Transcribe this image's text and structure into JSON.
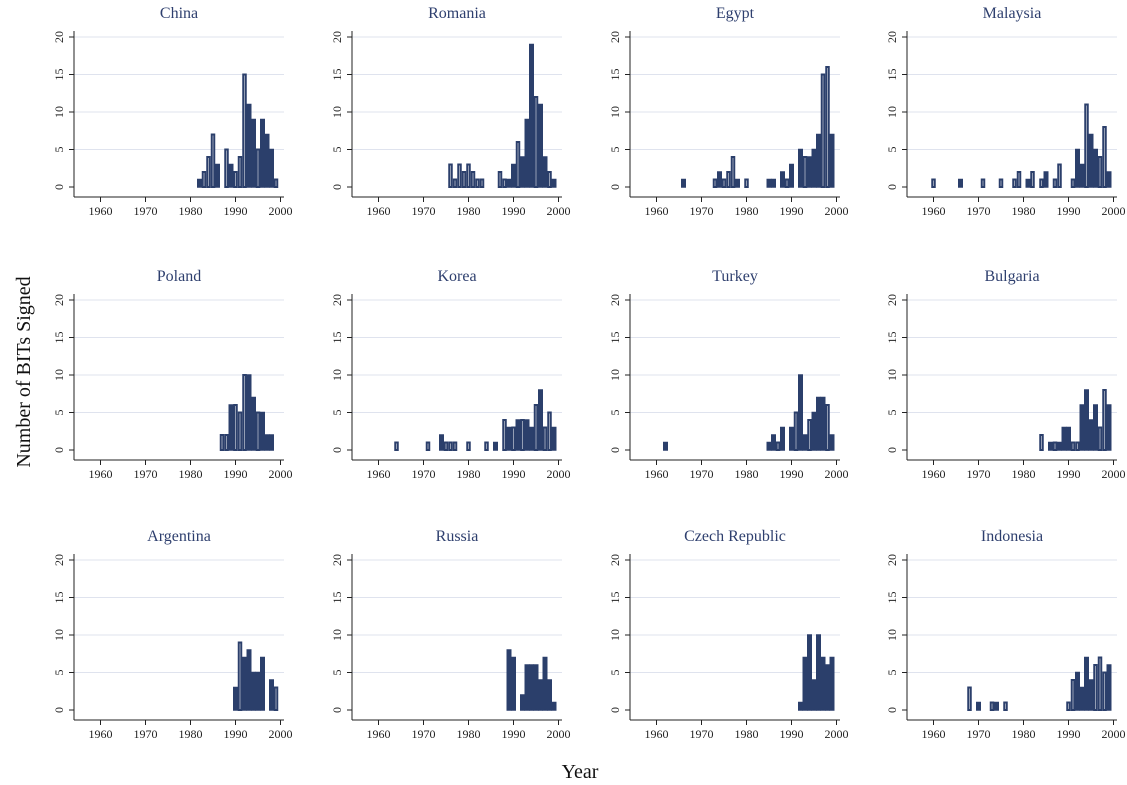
{
  "figure": {
    "ylabel": "Number of BITs Signed",
    "xlabel": "Year"
  },
  "chart_data": [
    {
      "type": "bar",
      "title": "China",
      "xlim": [
        1955,
        2002
      ],
      "ylim": [
        0,
        20
      ],
      "xticks": [
        1960,
        1970,
        1980,
        1990,
        2000
      ],
      "yticks": [
        0,
        5,
        10,
        15,
        20
      ],
      "grid": true,
      "x": [
        1982,
        1983,
        1984,
        1985,
        1986,
        1988,
        1989,
        1990,
        1991,
        1992,
        1993,
        1994,
        1995,
        1996,
        1997,
        1998,
        1999
      ],
      "values": [
        1,
        2,
        4,
        7,
        3,
        5,
        3,
        2,
        4,
        15,
        11,
        9,
        5,
        9,
        7,
        5,
        1
      ],
      "hollow": [
        false,
        true,
        true,
        true,
        false,
        true,
        false,
        true,
        true,
        true,
        false,
        false,
        true,
        false,
        false,
        false,
        true
      ]
    },
    {
      "type": "bar",
      "title": "Romania",
      "xlim": [
        1955,
        2002
      ],
      "ylim": [
        0,
        20
      ],
      "xticks": [
        1960,
        1970,
        1980,
        1990,
        2000
      ],
      "yticks": [
        0,
        5,
        10,
        15,
        20
      ],
      "grid": true,
      "x": [
        1976,
        1977,
        1978,
        1979,
        1980,
        1981,
        1982,
        1983,
        1987,
        1988,
        1989,
        1990,
        1991,
        1992,
        1993,
        1994,
        1995,
        1996,
        1997,
        1998,
        1999
      ],
      "values": [
        3,
        1,
        3,
        2,
        3,
        2,
        1,
        1,
        2,
        1,
        1,
        3,
        6,
        4,
        9,
        19,
        12,
        11,
        4,
        2,
        1
      ],
      "hollow": [
        true,
        true,
        true,
        true,
        true,
        true,
        true,
        true,
        true,
        true,
        false,
        false,
        true,
        false,
        false,
        false,
        true,
        false,
        false,
        true,
        false
      ]
    },
    {
      "type": "bar",
      "title": "Egypt",
      "xlim": [
        1955,
        2002
      ],
      "ylim": [
        0,
        20
      ],
      "xticks": [
        1960,
        1970,
        1980,
        1990,
        2000
      ],
      "yticks": [
        0,
        5,
        10,
        15,
        20
      ],
      "grid": true,
      "x": [
        1966,
        1973,
        1974,
        1975,
        1976,
        1977,
        1978,
        1980,
        1985,
        1986,
        1988,
        1989,
        1990,
        1992,
        1993,
        1994,
        1995,
        1996,
        1997,
        1998,
        1999
      ],
      "values": [
        1,
        1,
        2,
        1,
        2,
        4,
        1,
        1,
        1,
        1,
        2,
        1,
        3,
        5,
        4,
        4,
        5,
        7,
        15,
        16,
        7
      ],
      "hollow": [
        false,
        true,
        false,
        true,
        true,
        true,
        false,
        true,
        false,
        false,
        false,
        true,
        false,
        false,
        true,
        false,
        false,
        false,
        true,
        true,
        false
      ]
    },
    {
      "type": "bar",
      "title": "Malaysia",
      "xlim": [
        1955,
        2002
      ],
      "ylim": [
        0,
        20
      ],
      "xticks": [
        1960,
        1970,
        1980,
        1990,
        2000
      ],
      "yticks": [
        0,
        5,
        10,
        15,
        20
      ],
      "grid": true,
      "x": [
        1960,
        1966,
        1971,
        1975,
        1978,
        1979,
        1981,
        1982,
        1984,
        1985,
        1987,
        1988,
        1991,
        1992,
        1993,
        1994,
        1995,
        1996,
        1997,
        1998,
        1999
      ],
      "values": [
        1,
        1,
        1,
        1,
        1,
        2,
        1,
        2,
        1,
        2,
        1,
        3,
        1,
        5,
        3,
        11,
        7,
        5,
        4,
        8,
        2
      ],
      "hollow": [
        true,
        false,
        true,
        true,
        true,
        true,
        false,
        true,
        true,
        false,
        true,
        true,
        true,
        false,
        false,
        true,
        false,
        false,
        true,
        true,
        false
      ]
    },
    {
      "type": "bar",
      "title": "Poland",
      "xlim": [
        1955,
        2002
      ],
      "ylim": [
        0,
        20
      ],
      "xticks": [
        1960,
        1970,
        1980,
        1990,
        2000
      ],
      "yticks": [
        0,
        5,
        10,
        15,
        20
      ],
      "grid": true,
      "x": [
        1987,
        1988,
        1989,
        1990,
        1991,
        1992,
        1993,
        1994,
        1995,
        1996,
        1997,
        1998
      ],
      "values": [
        2,
        2,
        6,
        6,
        5,
        10,
        10,
        7,
        5,
        5,
        2,
        2
      ],
      "hollow": [
        true,
        true,
        false,
        true,
        true,
        true,
        false,
        false,
        true,
        false,
        false,
        false
      ]
    },
    {
      "type": "bar",
      "title": "Korea",
      "xlim": [
        1955,
        2002
      ],
      "ylim": [
        0,
        20
      ],
      "xticks": [
        1960,
        1970,
        1980,
        1990,
        2000
      ],
      "yticks": [
        0,
        5,
        10,
        15,
        20
      ],
      "grid": true,
      "x": [
        1964,
        1971,
        1974,
        1975,
        1976,
        1977,
        1980,
        1984,
        1986,
        1988,
        1989,
        1990,
        1991,
        1992,
        1993,
        1994,
        1995,
        1996,
        1997,
        1998,
        1999
      ],
      "values": [
        1,
        1,
        2,
        1,
        1,
        1,
        1,
        1,
        1,
        4,
        3,
        3,
        4,
        4,
        4,
        3,
        6,
        8,
        3,
        5,
        3
      ],
      "hollow": [
        true,
        true,
        false,
        true,
        true,
        true,
        true,
        true,
        false,
        true,
        false,
        true,
        false,
        true,
        false,
        false,
        true,
        false,
        true,
        true,
        false
      ]
    },
    {
      "type": "bar",
      "title": "Turkey",
      "xlim": [
        1955,
        2002
      ],
      "ylim": [
        0,
        20
      ],
      "xticks": [
        1960,
        1970,
        1980,
        1990,
        2000
      ],
      "yticks": [
        0,
        5,
        10,
        15,
        20
      ],
      "grid": true,
      "x": [
        1962,
        1985,
        1986,
        1987,
        1988,
        1990,
        1991,
        1992,
        1993,
        1994,
        1995,
        1996,
        1997,
        1998,
        1999
      ],
      "values": [
        1,
        1,
        2,
        1,
        3,
        3,
        5,
        10,
        2,
        4,
        5,
        7,
        7,
        6,
        2
      ],
      "hollow": [
        false,
        false,
        false,
        true,
        false,
        false,
        true,
        false,
        false,
        true,
        false,
        false,
        false,
        true,
        false
      ]
    },
    {
      "type": "bar",
      "title": "Bulgaria",
      "xlim": [
        1955,
        2002
      ],
      "ylim": [
        0,
        20
      ],
      "xticks": [
        1960,
        1970,
        1980,
        1990,
        2000
      ],
      "yticks": [
        0,
        5,
        10,
        15,
        20
      ],
      "grid": true,
      "x": [
        1984,
        1986,
        1987,
        1988,
        1989,
        1990,
        1991,
        1992,
        1993,
        1994,
        1995,
        1996,
        1997,
        1998,
        1999
      ],
      "values": [
        2,
        1,
        1,
        1,
        3,
        3,
        1,
        1,
        6,
        8,
        4,
        6,
        3,
        8,
        6
      ],
      "hollow": [
        true,
        false,
        true,
        false,
        false,
        false,
        true,
        true,
        false,
        false,
        false,
        false,
        true,
        true,
        false
      ]
    },
    {
      "type": "bar",
      "title": "Argentina",
      "xlim": [
        1955,
        2002
      ],
      "ylim": [
        0,
        20
      ],
      "xticks": [
        1960,
        1970,
        1980,
        1990,
        2000
      ],
      "yticks": [
        0,
        5,
        10,
        15,
        20
      ],
      "grid": true,
      "x": [
        1990,
        1991,
        1992,
        1993,
        1994,
        1995,
        1996,
        1998,
        1999
      ],
      "values": [
        3,
        9,
        7,
        8,
        5,
        5,
        7,
        4,
        3
      ],
      "hollow": [
        false,
        true,
        false,
        false,
        false,
        false,
        false,
        false,
        true
      ]
    },
    {
      "type": "bar",
      "title": "Russia",
      "xlim": [
        1955,
        2002
      ],
      "ylim": [
        0,
        20
      ],
      "xticks": [
        1960,
        1970,
        1980,
        1990,
        2000
      ],
      "yticks": [
        0,
        5,
        10,
        15,
        20
      ],
      "grid": true,
      "x": [
        1989,
        1990,
        1992,
        1993,
        1994,
        1995,
        1996,
        1997,
        1998,
        1999
      ],
      "values": [
        8,
        7,
        2,
        6,
        6,
        6,
        4,
        7,
        4,
        1
      ],
      "hollow": [
        false,
        false,
        false,
        false,
        false,
        false,
        false,
        false,
        false,
        false
      ]
    },
    {
      "type": "bar",
      "title": "Czech Republic",
      "xlim": [
        1955,
        2002
      ],
      "ylim": [
        0,
        20
      ],
      "xticks": [
        1960,
        1970,
        1980,
        1990,
        2000
      ],
      "yticks": [
        0,
        5,
        10,
        15,
        20
      ],
      "grid": true,
      "x": [
        1992,
        1993,
        1994,
        1995,
        1996,
        1997,
        1998,
        1999
      ],
      "values": [
        1,
        7,
        10,
        4,
        10,
        7,
        6,
        7
      ],
      "hollow": [
        false,
        false,
        false,
        false,
        false,
        false,
        false,
        false
      ]
    },
    {
      "type": "bar",
      "title": "Indonesia",
      "xlim": [
        1955,
        2002
      ],
      "ylim": [
        0,
        20
      ],
      "xticks": [
        1960,
        1970,
        1980,
        1990,
        2000
      ],
      "yticks": [
        0,
        5,
        10,
        15,
        20
      ],
      "grid": true,
      "x": [
        1968,
        1970,
        1973,
        1974,
        1976,
        1990,
        1991,
        1992,
        1993,
        1994,
        1995,
        1996,
        1997,
        1998,
        1999
      ],
      "values": [
        3,
        1,
        1,
        1,
        1,
        1,
        4,
        5,
        3,
        7,
        4,
        6,
        7,
        5,
        6
      ],
      "hollow": [
        true,
        false,
        true,
        false,
        true,
        true,
        true,
        false,
        false,
        false,
        false,
        true,
        true,
        true,
        false
      ]
    }
  ]
}
